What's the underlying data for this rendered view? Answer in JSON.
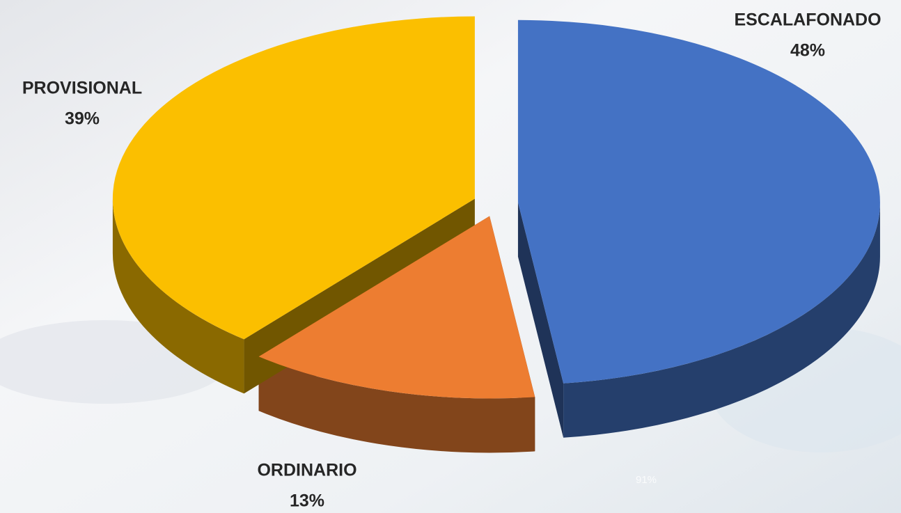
{
  "chart_data": {
    "type": "pie3d",
    "categories": [
      "ESCALAFONADO",
      "ORDINARIO",
      "PROVISIONAL"
    ],
    "values": [
      48,
      13,
      39
    ],
    "value_labels": [
      "48%",
      "13%",
      "39%"
    ],
    "colors": [
      "#4472c4",
      "#ed7d31",
      "#fbbf00"
    ],
    "annotations": [
      "91%"
    ]
  }
}
